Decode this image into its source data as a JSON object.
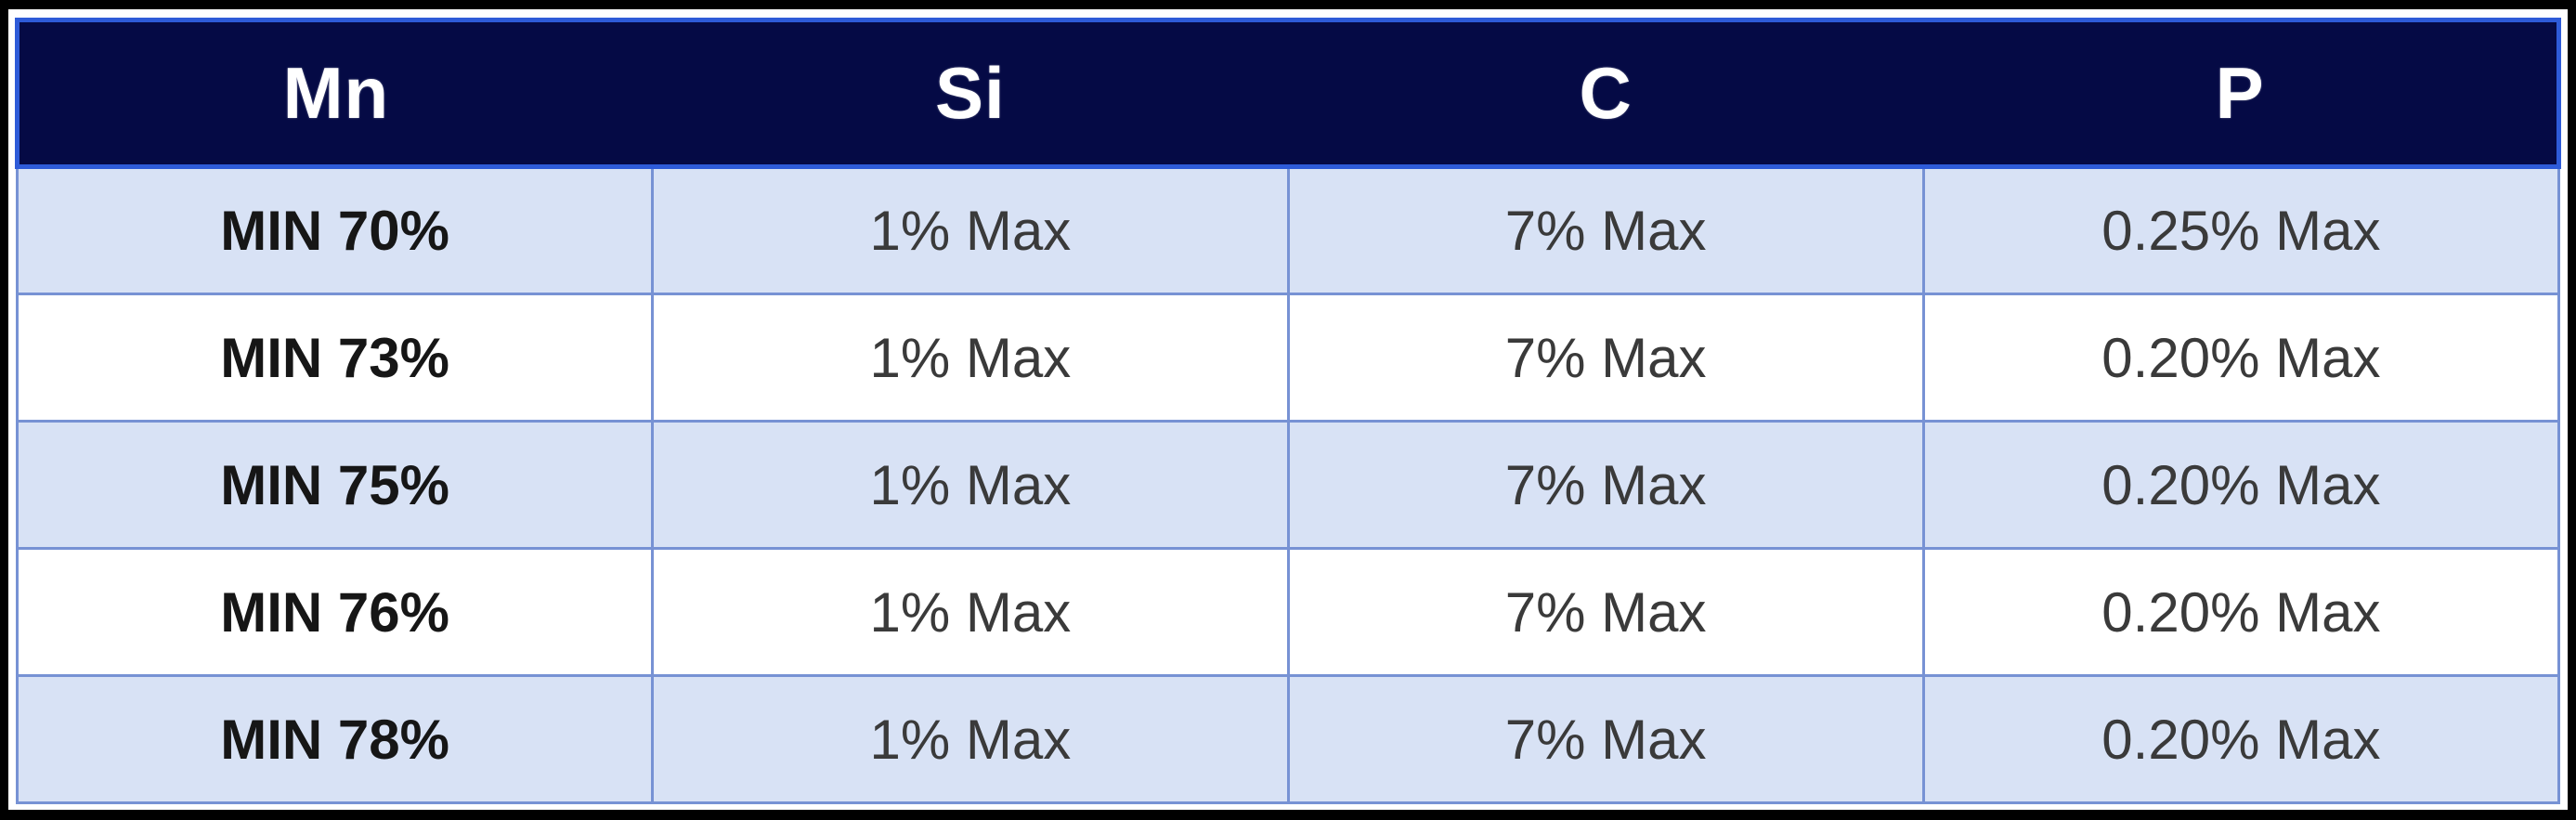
{
  "table": {
    "title": "chemical-composition-spec-table",
    "headers": [
      "Mn",
      "Si",
      "C",
      "P"
    ],
    "rows": [
      [
        "MIN 70%",
        "1% Max",
        "7% Max",
        "0.25% Max"
      ],
      [
        "MIN 73%",
        "1% Max",
        "7% Max",
        "0.20% Max"
      ],
      [
        "MIN 75%",
        "1% Max",
        "7% Max",
        "0.20% Max"
      ],
      [
        "MIN 76%",
        "1% Max",
        "7% Max",
        "0.20% Max"
      ],
      [
        "MIN 78%",
        "1% Max",
        "7% Max",
        "0.20% Max"
      ]
    ]
  },
  "colors": {
    "header_bg": "#050a45",
    "header_border": "#2e5bd8",
    "header_text": "#ffffff",
    "grid_border": "#7792d4",
    "row_alt_bg": "#d8e2f5",
    "row_main_bg": "#ffffff",
    "frame": "#000000"
  }
}
